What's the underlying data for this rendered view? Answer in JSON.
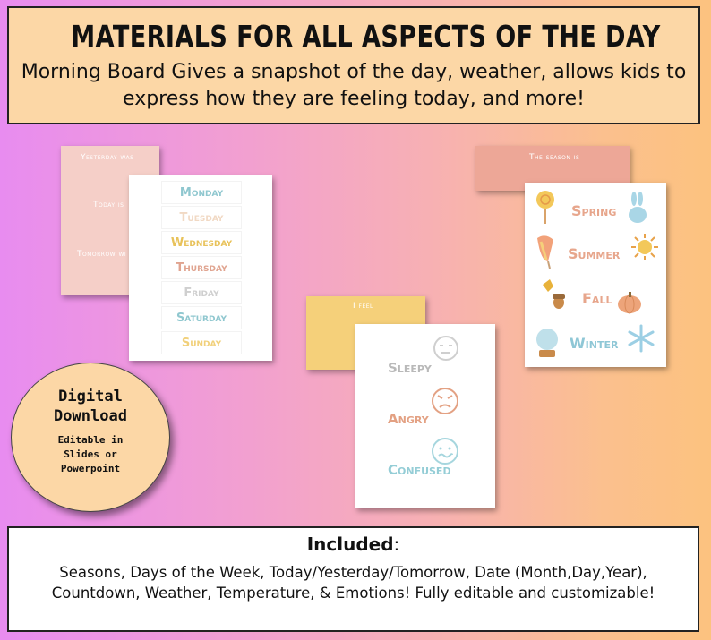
{
  "header": {
    "title": "MATERIALS FOR ALL ASPECTS OF THE DAY",
    "subtitle": "Morning Board Gives a snapshot of the day, weather, allows kids to express how they are feeling today, and more!"
  },
  "yesterday_card": {
    "yesterday": "Yesterday was",
    "today": "Today is",
    "tomorrow": "Tomorrow wi"
  },
  "days_card": {
    "days": [
      {
        "label": "Monday",
        "color": "#8fc7cf"
      },
      {
        "label": "Tuesday",
        "color": "#f1d9c4"
      },
      {
        "label": "Wednesday",
        "color": "#e8c25a"
      },
      {
        "label": "Thursday",
        "color": "#e0a490"
      },
      {
        "label": "Friday",
        "color": "#cfcfcf"
      },
      {
        "label": "Saturday",
        "color": "#8fc7cf"
      },
      {
        "label": "Sunday",
        "color": "#f1d07a"
      }
    ]
  },
  "season_card": {
    "label": "The season is",
    "seasons": [
      {
        "label": "Spring",
        "color": "#e7a68c"
      },
      {
        "label": "Summer",
        "color": "#e7a68c"
      },
      {
        "label": "Fall",
        "color": "#e7a68c"
      },
      {
        "label": "Winter",
        "color": "#8fc7d6"
      }
    ]
  },
  "feel_card": {
    "label": "I feel",
    "emotions": [
      {
        "label": "Sleepy",
        "color": "#b9b9b9"
      },
      {
        "label": "Angry",
        "color": "#e3a183"
      },
      {
        "label": "Confused",
        "color": "#94cdd6"
      }
    ]
  },
  "badge": {
    "title": "Digital\nDownload",
    "subtitle": "Editable in\nSlides or\nPowerpoint"
  },
  "footer": {
    "title": "Included",
    "title_suffix": ":",
    "body": "Seasons, Days of the Week, Today/Yesterday/Tomorrow, Date (Month,Day,Year), Countdown, Weather, Temperature, & Emotions!  Fully editable and customizable!"
  }
}
